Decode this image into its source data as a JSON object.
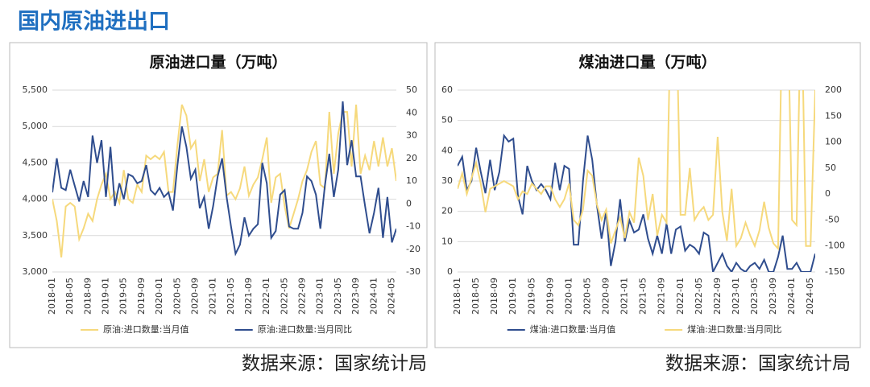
{
  "title": "国内原油进出口",
  "footers": [
    "数据来源：国家统计局",
    "数据来源：国家统计局"
  ],
  "chart_data": [
    {
      "type": "line",
      "title": "原油进口量（万吨）",
      "categories": [
        "2018-01",
        null,
        null,
        null,
        "2018-05",
        null,
        null,
        null,
        "2018-09",
        null,
        null,
        null,
        "2019-01",
        null,
        null,
        null,
        "2019-05",
        null,
        null,
        null,
        "2019-09",
        null,
        null,
        null,
        "2020-01",
        null,
        null,
        null,
        "2020-05",
        null,
        null,
        null,
        "2020-09",
        null,
        null,
        null,
        "2021-01",
        null,
        null,
        null,
        "2021-05",
        null,
        null,
        null,
        "2021-09",
        null,
        null,
        null,
        "2022-01",
        null,
        null,
        null,
        "2022-05",
        null,
        null,
        null,
        "2022-09",
        null,
        null,
        null,
        "2023-01",
        null,
        null,
        null,
        "2023-05",
        null,
        null,
        null,
        "2023-09",
        null,
        null,
        null,
        "2024-01",
        null,
        null,
        null,
        "2024-05",
        null
      ],
      "series": [
        {
          "name": "原油:进口数量:当月值",
          "color": "#f6d97c",
          "values": [
            4000,
            3700,
            3200,
            3900,
            3950,
            3900,
            3450,
            3600,
            3800,
            3700,
            4000,
            4200,
            4350,
            4000,
            4100,
            3950,
            4400,
            4000,
            3950,
            4200,
            4100,
            4600,
            4550,
            4600,
            4550,
            4650,
            4100,
            4100,
            4750,
            5300,
            5150,
            4700,
            4800,
            4250,
            4550,
            4100,
            4300,
            4350,
            4950,
            4050,
            4100,
            4000,
            4150,
            4450,
            4050,
            4200,
            4300,
            4550,
            4850,
            3950,
            4300,
            4350,
            3900,
            3600,
            3800,
            4000,
            4250,
            4400,
            4650,
            4800,
            4200,
            4150,
            5200,
            4350,
            4900,
            5200,
            5200,
            4450,
            5300,
            4350,
            4600,
            4400,
            4800,
            4450,
            4850,
            4450,
            4700,
            4250
          ]
        },
        {
          "name": "原油:进口数量:当月同比",
          "color": "#2f4d8e",
          "axis": "y2",
          "values": [
            5,
            20,
            7,
            6,
            15,
            8,
            1,
            10,
            3,
            30,
            18,
            28,
            3,
            25,
            -1,
            9,
            2,
            13,
            12,
            9,
            10,
            17,
            6,
            4,
            7,
            3,
            5,
            -3,
            17,
            34,
            25,
            11,
            15,
            -2,
            3,
            -11,
            -1,
            12,
            20,
            3,
            -10,
            -22,
            -18,
            -6,
            -14,
            -11,
            -9,
            18,
            9,
            -15,
            -12,
            4,
            6,
            -10,
            -11,
            -11,
            -4,
            12,
            10,
            4,
            -11,
            8,
            22,
            3,
            15,
            45,
            17,
            28,
            12,
            12,
            -1,
            -13,
            -4,
            7,
            -15,
            3,
            -17,
            -11
          ]
        }
      ],
      "ylim": [
        3000,
        5500
      ],
      "yticks": [
        {
          "value": 3000,
          "label": "3,000"
        },
        {
          "value": 3500,
          "label": "3,500"
        },
        {
          "value": 4000,
          "label": "4,000"
        },
        {
          "value": 4500,
          "label": "4,500"
        },
        {
          "value": 5000,
          "label": "5,000"
        },
        {
          "value": 5500,
          "label": "5,500"
        }
      ],
      "y2lim": [
        -30,
        50
      ],
      "y2ticks": [
        -30,
        -20,
        -10,
        0,
        10,
        20,
        30,
        40,
        50
      ],
      "grid": true
    },
    {
      "type": "line",
      "title": "煤油进口量（万吨）",
      "categories": [
        "2018-01",
        null,
        null,
        null,
        "2018-05",
        null,
        null,
        null,
        "2018-09",
        null,
        null,
        null,
        "2019-01",
        null,
        null,
        null,
        "2019-05",
        null,
        null,
        null,
        "2019-09",
        null,
        null,
        null,
        "2020-01",
        null,
        null,
        null,
        "2020-05",
        null,
        null,
        null,
        "2020-09",
        null,
        null,
        null,
        "2021-01",
        null,
        null,
        null,
        "2021-05",
        null,
        null,
        null,
        "2021-09",
        null,
        null,
        null,
        "2022-01",
        null,
        null,
        null,
        "2022-05",
        null,
        null,
        null,
        "2022-09",
        null,
        null,
        null,
        "2023-01",
        null,
        null,
        null,
        "2023-05",
        null,
        null,
        null,
        "2023-09",
        null,
        null,
        null,
        "2024-01",
        null,
        null,
        null,
        "2024-05",
        null
      ],
      "series": [
        {
          "name": "煤油:进口数量:当月值",
          "color": "#2f4d8e",
          "values": [
            35,
            38,
            27,
            30,
            41,
            33,
            26,
            37,
            27,
            33,
            45,
            43,
            44,
            25,
            19,
            35,
            30,
            27,
            29,
            27,
            24,
            36,
            27,
            35,
            34,
            9,
            9,
            30,
            45,
            37,
            22,
            11,
            20,
            2,
            10,
            24,
            10,
            17,
            13,
            14,
            19,
            11,
            6,
            12,
            6,
            16,
            6,
            14,
            15,
            7,
            9,
            8,
            6,
            13,
            12,
            0,
            3,
            6,
            2,
            0,
            3,
            1,
            0,
            2,
            3,
            1,
            4,
            0,
            0,
            5,
            12,
            1,
            1,
            3,
            0,
            0,
            0,
            6
          ]
        },
        {
          "name": "煤油:进口数量:当月同比",
          "color": "#f6d97c",
          "axis": "y2",
          "values": [
            10,
            40,
            0,
            30,
            60,
            20,
            -35,
            10,
            15,
            20,
            25,
            20,
            15,
            -10,
            5,
            0,
            20,
            10,
            0,
            15,
            15,
            -10,
            -25,
            -10,
            20,
            -50,
            -60,
            -30,
            45,
            35,
            -20,
            -50,
            -30,
            -95,
            -70,
            -45,
            -85,
            -35,
            -55,
            70,
            35,
            -50,
            0,
            -80,
            -40,
            -55,
            400,
            400,
            -40,
            -40,
            50,
            -50,
            -35,
            -25,
            -50,
            -40,
            110,
            -35,
            -90,
            10,
            -100,
            -85,
            -55,
            -80,
            -100,
            -70,
            -15,
            -65,
            -95,
            -105,
            400,
            400,
            -50,
            -60,
            400,
            -100,
            -100,
            200
          ]
        }
      ],
      "ylim": [
        0,
        60
      ],
      "yticks": [
        0,
        10,
        20,
        30,
        40,
        50,
        60
      ],
      "y2lim": [
        -150,
        200
      ],
      "y2ticks": [
        -150,
        -100,
        -50,
        0,
        50,
        100,
        150,
        200
      ],
      "grid": true
    }
  ]
}
